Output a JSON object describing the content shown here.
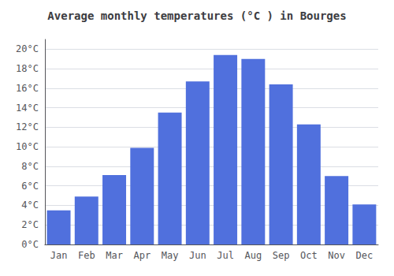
{
  "chart_data": {
    "type": "bar",
    "title": "Average monthly temperatures (°C ) in Bourges",
    "categories": [
      "Jan",
      "Feb",
      "Mar",
      "Apr",
      "May",
      "Jun",
      "Jul",
      "Aug",
      "Sep",
      "Oct",
      "Nov",
      "Dec"
    ],
    "values": [
      3.5,
      4.9,
      7.1,
      9.9,
      13.5,
      16.7,
      19.4,
      19.0,
      16.4,
      12.3,
      7.0,
      4.1
    ],
    "ylim": [
      0,
      21
    ],
    "yticks": [
      {
        "value": 0,
        "label": "0°C"
      },
      {
        "value": 2,
        "label": "2°C"
      },
      {
        "value": 4,
        "label": "4°C"
      },
      {
        "value": 6,
        "label": "6°C"
      },
      {
        "value": 8,
        "label": "8°C"
      },
      {
        "value": 10,
        "label": "10°C"
      },
      {
        "value": 12,
        "label": "12°C"
      },
      {
        "value": 14,
        "label": "14°C"
      },
      {
        "value": 16,
        "label": "16°C"
      },
      {
        "value": 18,
        "label": "18°C"
      },
      {
        "value": 20,
        "label": "20°C"
      }
    ],
    "grid": true
  }
}
